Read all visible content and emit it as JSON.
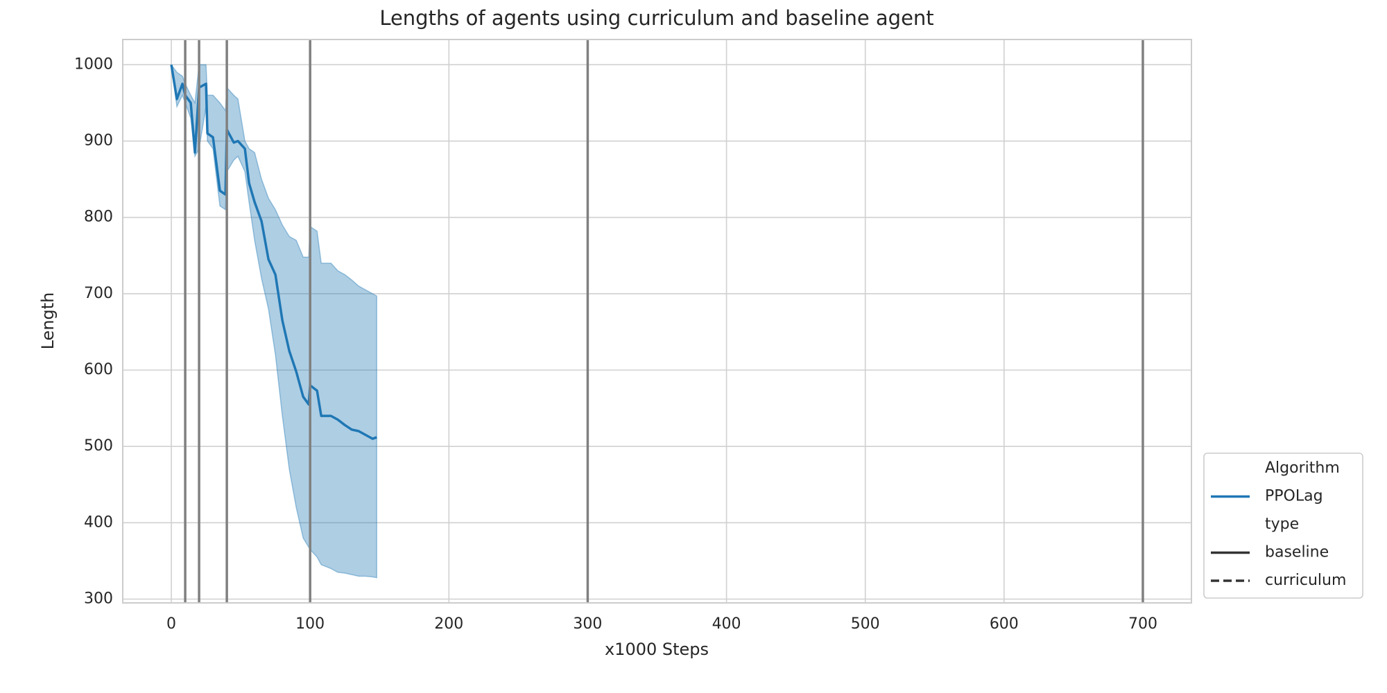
{
  "chart_data": {
    "type": "line",
    "title": "Lengths of agents using curriculum and baseline agent",
    "x_label": "x1000 Steps",
    "y_label": "Length",
    "xlim": [
      -35,
      735
    ],
    "ylim": [
      295,
      1033
    ],
    "xticks": [
      0,
      100,
      200,
      300,
      400,
      500,
      600,
      700
    ],
    "yticks": [
      300,
      400,
      500,
      600,
      700,
      800,
      900,
      1000
    ],
    "grid": true,
    "vlines": [
      10,
      20,
      40,
      100,
      300,
      700
    ],
    "vline_color": "#808080",
    "x": [
      0,
      4,
      8,
      10,
      14,
      17,
      20,
      25,
      26,
      30,
      35,
      39,
      40,
      45,
      48,
      53,
      56,
      60,
      65,
      70,
      75,
      80,
      85,
      90,
      95,
      99,
      100,
      105,
      108,
      115,
      120,
      125,
      130,
      135,
      140,
      145,
      148
    ],
    "series": [
      {
        "name": "PPOLag",
        "style": "baseline",
        "color": "#1f77b4",
        "values": [
          1000,
          955,
          975,
          960,
          950,
          885,
          970,
          975,
          910,
          905,
          835,
          830,
          915,
          898,
          900,
          890,
          845,
          820,
          795,
          745,
          725,
          665,
          625,
          598,
          565,
          555,
          580,
          573,
          540,
          540,
          535,
          528,
          522,
          520,
          515,
          510,
          512
        ],
        "upper": [
          1000,
          990,
          985,
          975,
          960,
          950,
          1000,
          1000,
          960,
          960,
          950,
          940,
          970,
          960,
          955,
          900,
          890,
          885,
          850,
          825,
          810,
          790,
          775,
          770,
          748,
          748,
          788,
          782,
          740,
          740,
          730,
          725,
          718,
          710,
          705,
          700,
          697
        ],
        "lower": [
          1000,
          945,
          960,
          950,
          930,
          880,
          890,
          945,
          900,
          890,
          815,
          810,
          860,
          875,
          880,
          860,
          820,
          770,
          720,
          680,
          620,
          540,
          470,
          420,
          380,
          368,
          365,
          355,
          345,
          340,
          335,
          334,
          332,
          330,
          330,
          329,
          328
        ]
      }
    ],
    "legend": {
      "position": "right-bottom",
      "hue_title": "Algorithm",
      "style_title": "type",
      "style_color": "#333333",
      "styles": [
        {
          "name": "baseline",
          "dash": "solid"
        },
        {
          "name": "curriculum",
          "dash": "dashed"
        }
      ]
    }
  }
}
